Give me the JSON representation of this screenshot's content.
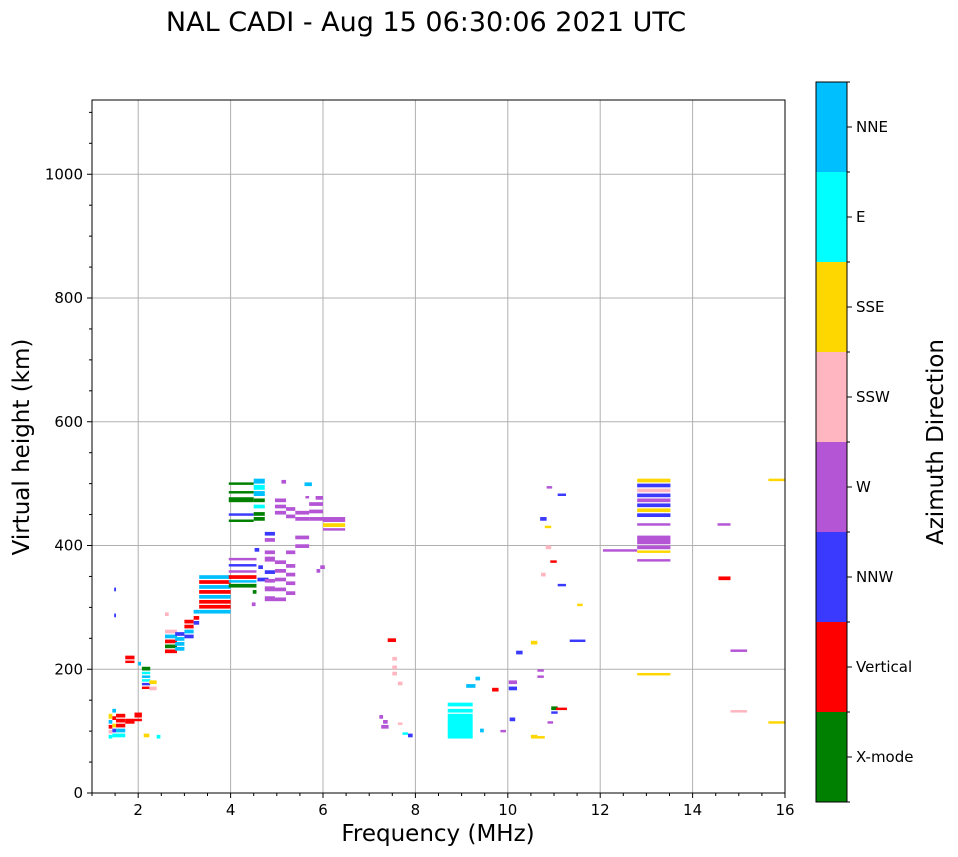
{
  "chart_data": {
    "type": "scatter",
    "title": "NAL CADI - Aug 15 06:30:06 2021 UTC",
    "xlabel": "Frequency (MHz)",
    "ylabel": "Virtual height (km)",
    "xlim": [
      1,
      16
    ],
    "ylim": [
      0,
      1120
    ],
    "xticks": [
      2,
      4,
      6,
      8,
      10,
      12,
      14,
      16
    ],
    "yticks": [
      0,
      200,
      400,
      600,
      800,
      1000
    ],
    "grid": true,
    "colorbar": {
      "label": "Azimuth Direction",
      "categories": [
        {
          "name": "X-mode",
          "color": "#008000"
        },
        {
          "name": "Vertical",
          "color": "#ff0000"
        },
        {
          "name": "NNW",
          "color": "#3a3aff"
        },
        {
          "name": "W",
          "color": "#b455d6"
        },
        {
          "name": "SSW",
          "color": "#ffb6c1"
        },
        {
          "name": "SSE",
          "color": "#ffd700"
        },
        {
          "name": "E",
          "color": "#00ffff"
        },
        {
          "name": "NNE",
          "color": "#00bfff"
        }
      ]
    },
    "echoes": [
      [
        1.36,
        1.44,
        120,
        128,
        "SSE"
      ],
      [
        1.36,
        1.44,
        112,
        118,
        "NNE"
      ],
      [
        1.36,
        1.44,
        104,
        110,
        "Vertical"
      ],
      [
        1.36,
        1.44,
        96,
        102,
        "SSW"
      ],
      [
        1.36,
        1.44,
        88,
        94,
        "E"
      ],
      [
        1.44,
        1.52,
        130,
        136,
        "NNE"
      ],
      [
        1.44,
        1.52,
        118,
        124,
        "Vertical"
      ],
      [
        1.44,
        1.52,
        106,
        112,
        "SSE"
      ],
      [
        1.44,
        1.52,
        98,
        104,
        "NNW"
      ],
      [
        1.44,
        1.52,
        90,
        96,
        "E"
      ],
      [
        1.48,
        1.52,
        326,
        332,
        "NNW"
      ],
      [
        1.48,
        1.52,
        284,
        290,
        "NNW"
      ],
      [
        1.52,
        1.72,
        122,
        128,
        "Vertical"
      ],
      [
        1.52,
        1.72,
        114,
        120,
        "Vertical"
      ],
      [
        1.52,
        1.72,
        106,
        112,
        "Vertical"
      ],
      [
        1.52,
        1.72,
        98,
        104,
        "NNE"
      ],
      [
        1.52,
        1.72,
        90,
        96,
        "E"
      ],
      [
        1.72,
        1.92,
        112,
        120,
        "Vertical"
      ],
      [
        1.72,
        1.92,
        216,
        222,
        "Vertical"
      ],
      [
        1.72,
        1.92,
        210,
        214,
        "Vertical"
      ],
      [
        1.92,
        2.08,
        122,
        130,
        "Vertical"
      ],
      [
        1.92,
        2.08,
        116,
        120,
        "Vertical"
      ],
      [
        2.0,
        2.06,
        206,
        212,
        "NNE"
      ],
      [
        2.08,
        2.26,
        198,
        204,
        "X-mode"
      ],
      [
        2.08,
        2.26,
        192,
        196,
        "E"
      ],
      [
        2.08,
        2.26,
        186,
        190,
        "NNE"
      ],
      [
        2.08,
        2.26,
        180,
        184,
        "E"
      ],
      [
        2.08,
        2.26,
        174,
        178,
        "NNW"
      ],
      [
        2.08,
        2.26,
        168,
        172,
        "Vertical"
      ],
      [
        2.12,
        2.24,
        90,
        96,
        "SSE"
      ],
      [
        2.24,
        2.4,
        176,
        182,
        "SSE"
      ],
      [
        2.24,
        2.4,
        166,
        172,
        "SSW"
      ],
      [
        2.4,
        2.48,
        88,
        94,
        "E"
      ],
      [
        2.58,
        2.66,
        286,
        292,
        "SSW"
      ],
      [
        2.58,
        2.84,
        258,
        264,
        "SSW"
      ],
      [
        2.58,
        2.84,
        250,
        256,
        "NNE"
      ],
      [
        2.58,
        2.84,
        242,
        248,
        "Vertical"
      ],
      [
        2.58,
        2.84,
        234,
        240,
        "X-mode"
      ],
      [
        2.58,
        2.84,
        226,
        232,
        "Vertical"
      ],
      [
        2.8,
        3.0,
        254,
        260,
        "NNW"
      ],
      [
        2.8,
        3.0,
        246,
        252,
        "NNE"
      ],
      [
        2.8,
        3.0,
        238,
        244,
        "NNE"
      ],
      [
        2.8,
        3.0,
        230,
        236,
        "NNE"
      ],
      [
        3.0,
        3.2,
        274,
        280,
        "Vertical"
      ],
      [
        3.0,
        3.2,
        266,
        272,
        "Vertical"
      ],
      [
        3.0,
        3.2,
        258,
        264,
        "NNE"
      ],
      [
        3.0,
        3.2,
        250,
        256,
        "NNW"
      ],
      [
        3.2,
        3.32,
        290,
        296,
        "NNE"
      ],
      [
        3.2,
        3.32,
        280,
        286,
        "Vertical"
      ],
      [
        3.2,
        3.32,
        272,
        278,
        "NNW"
      ],
      [
        3.32,
        4.0,
        346,
        352,
        "NNE"
      ],
      [
        3.32,
        4.0,
        338,
        344,
        "Vertical"
      ],
      [
        3.32,
        4.0,
        330,
        336,
        "NNE"
      ],
      [
        3.32,
        4.0,
        322,
        328,
        "Vertical"
      ],
      [
        3.32,
        4.0,
        314,
        320,
        "NNE"
      ],
      [
        3.32,
        4.0,
        306,
        312,
        "Vertical"
      ],
      [
        3.32,
        4.0,
        298,
        304,
        "Vertical"
      ],
      [
        3.32,
        4.0,
        290,
        296,
        "NNE"
      ],
      [
        3.96,
        4.5,
        498,
        502,
        "X-mode"
      ],
      [
        3.96,
        4.5,
        484,
        488,
        "X-mode"
      ],
      [
        3.96,
        4.5,
        470,
        478,
        "X-mode"
      ],
      [
        3.96,
        4.5,
        448,
        452,
        "NNW"
      ],
      [
        3.96,
        4.5,
        438,
        442,
        "X-mode"
      ],
      [
        3.96,
        4.56,
        376,
        380,
        "W"
      ],
      [
        3.96,
        4.56,
        366,
        370,
        "NNW"
      ],
      [
        3.96,
        4.56,
        356,
        360,
        "W"
      ],
      [
        3.96,
        4.56,
        346,
        352,
        "Vertical"
      ],
      [
        3.96,
        4.56,
        340,
        344,
        "NNE"
      ],
      [
        3.96,
        4.56,
        332,
        338,
        "X-mode"
      ],
      [
        4.5,
        4.74,
        500,
        508,
        "NNE"
      ],
      [
        4.5,
        4.74,
        490,
        498,
        "E"
      ],
      [
        4.5,
        4.74,
        480,
        488,
        "NNE"
      ],
      [
        4.5,
        4.74,
        470,
        476,
        "X-mode"
      ],
      [
        4.5,
        4.74,
        460,
        466,
        "E"
      ],
      [
        4.5,
        4.74,
        448,
        454,
        "X-mode"
      ],
      [
        4.5,
        4.74,
        440,
        446,
        "X-mode"
      ],
      [
        4.58,
        4.82,
        342,
        348,
        "NNW"
      ],
      [
        4.6,
        4.7,
        362,
        368,
        "NNW"
      ],
      [
        4.52,
        4.62,
        390,
        396,
        "NNW"
      ],
      [
        4.48,
        4.56,
        322,
        328,
        "X-mode"
      ],
      [
        4.46,
        4.54,
        302,
        308,
        "W"
      ],
      [
        4.74,
        4.96,
        416,
        422,
        "NNW"
      ],
      [
        4.74,
        4.96,
        406,
        412,
        "W"
      ],
      [
        4.74,
        4.96,
        386,
        392,
        "W"
      ],
      [
        4.74,
        4.96,
        374,
        382,
        "W"
      ],
      [
        4.74,
        4.96,
        354,
        360,
        "NNW"
      ],
      [
        4.74,
        4.96,
        340,
        346,
        "W"
      ],
      [
        4.74,
        4.96,
        326,
        334,
        "W"
      ],
      [
        4.74,
        4.96,
        310,
        318,
        "W"
      ],
      [
        4.96,
        5.2,
        470,
        476,
        "W"
      ],
      [
        4.96,
        5.2,
        460,
        466,
        "W"
      ],
      [
        4.96,
        5.2,
        450,
        456,
        "W"
      ],
      [
        4.96,
        5.2,
        370,
        376,
        "W"
      ],
      [
        4.96,
        5.2,
        356,
        362,
        "W"
      ],
      [
        4.96,
        5.2,
        342,
        348,
        "W"
      ],
      [
        4.96,
        5.2,
        326,
        332,
        "W"
      ],
      [
        4.96,
        5.2,
        310,
        316,
        "W"
      ],
      [
        5.2,
        5.4,
        456,
        462,
        "W"
      ],
      [
        5.2,
        5.4,
        444,
        450,
        "W"
      ],
      [
        5.2,
        5.4,
        386,
        392,
        "W"
      ],
      [
        5.2,
        5.4,
        364,
        370,
        "W"
      ],
      [
        5.2,
        5.4,
        350,
        356,
        "W"
      ],
      [
        5.2,
        5.4,
        336,
        342,
        "W"
      ],
      [
        5.2,
        5.4,
        320,
        326,
        "W"
      ],
      [
        5.4,
        5.7,
        450,
        456,
        "W"
      ],
      [
        5.4,
        5.7,
        440,
        446,
        "W"
      ],
      [
        5.4,
        5.7,
        410,
        416,
        "W"
      ],
      [
        5.4,
        5.7,
        396,
        402,
        "W"
      ],
      [
        5.62,
        5.7,
        476,
        480,
        "W"
      ],
      [
        5.7,
        6.0,
        464,
        470,
        "W"
      ],
      [
        5.7,
        6.0,
        452,
        458,
        "W"
      ],
      [
        5.7,
        6.0,
        440,
        446,
        "W"
      ],
      [
        5.84,
        6.0,
        474,
        480,
        "W"
      ],
      [
        5.94,
        6.04,
        362,
        368,
        "W"
      ],
      [
        5.86,
        5.94,
        356,
        362,
        "W"
      ],
      [
        6.0,
        6.48,
        438,
        446,
        "W"
      ],
      [
        6.0,
        6.48,
        430,
        436,
        "SSE"
      ],
      [
        6.0,
        6.48,
        424,
        428,
        "W"
      ],
      [
        5.6,
        5.76,
        496,
        502,
        "NNE"
      ],
      [
        5.1,
        5.2,
        500,
        506,
        "W"
      ],
      [
        7.22,
        7.3,
        120,
        126,
        "W"
      ],
      [
        7.3,
        7.4,
        112,
        118,
        "W"
      ],
      [
        7.26,
        7.42,
        104,
        110,
        "W"
      ],
      [
        7.4,
        7.58,
        244,
        250,
        "Vertical"
      ],
      [
        7.5,
        7.6,
        214,
        220,
        "SSW"
      ],
      [
        7.5,
        7.6,
        200,
        206,
        "SSW"
      ],
      [
        7.5,
        7.6,
        190,
        196,
        "SSW"
      ],
      [
        7.62,
        7.72,
        174,
        180,
        "SSW"
      ],
      [
        7.62,
        7.72,
        110,
        114,
        "SSW"
      ],
      [
        7.72,
        7.84,
        94,
        98,
        "E"
      ],
      [
        7.84,
        7.94,
        90,
        96,
        "NNW"
      ],
      [
        8.7,
        9.24,
        140,
        146,
        "E"
      ],
      [
        8.7,
        9.24,
        130,
        136,
        "E"
      ],
      [
        8.7,
        9.24,
        88,
        128,
        "E"
      ],
      [
        9.1,
        9.3,
        170,
        176,
        "NNE"
      ],
      [
        9.3,
        9.4,
        182,
        188,
        "NNE"
      ],
      [
        9.4,
        9.48,
        98,
        104,
        "NNE"
      ],
      [
        9.66,
        9.8,
        164,
        170,
        "Vertical"
      ],
      [
        9.84,
        9.96,
        98,
        102,
        "W"
      ],
      [
        10.02,
        10.2,
        176,
        182,
        "W"
      ],
      [
        10.02,
        10.2,
        166,
        172,
        "NNW"
      ],
      [
        10.04,
        10.16,
        116,
        122,
        "NNW"
      ],
      [
        10.18,
        10.32,
        224,
        230,
        "NNW"
      ],
      [
        10.5,
        10.64,
        240,
        246,
        "SSE"
      ],
      [
        10.5,
        10.64,
        88,
        94,
        "SSE"
      ],
      [
        10.62,
        10.8,
        88,
        92,
        "SSE"
      ],
      [
        10.64,
        10.78,
        196,
        200,
        "W"
      ],
      [
        10.64,
        10.78,
        186,
        190,
        "W"
      ],
      [
        10.7,
        10.84,
        440,
        446,
        "NNW"
      ],
      [
        10.72,
        10.82,
        350,
        356,
        "SSW"
      ],
      [
        10.8,
        10.94,
        428,
        432,
        "SSE"
      ],
      [
        10.82,
        10.94,
        394,
        400,
        "SSW"
      ],
      [
        10.84,
        10.96,
        492,
        496,
        "W"
      ],
      [
        10.86,
        10.98,
        112,
        116,
        "W"
      ],
      [
        10.92,
        11.06,
        372,
        376,
        "Vertical"
      ],
      [
        10.94,
        11.08,
        134,
        140,
        "X-mode"
      ],
      [
        10.94,
        11.08,
        128,
        132,
        "NNW"
      ],
      [
        11.04,
        11.28,
        134,
        138,
        "Vertical"
      ],
      [
        11.08,
        11.26,
        480,
        484,
        "NNW"
      ],
      [
        11.08,
        11.26,
        334,
        338,
        "NNW"
      ],
      [
        11.34,
        11.68,
        244,
        248,
        "NNW"
      ],
      [
        11.5,
        11.62,
        302,
        306,
        "SSE"
      ],
      [
        12.06,
        12.8,
        390,
        394,
        "W"
      ],
      [
        12.8,
        13.52,
        190,
        194,
        "SSE"
      ],
      [
        12.8,
        13.52,
        502,
        508,
        "SSE"
      ],
      [
        12.8,
        13.52,
        494,
        500,
        "NNW"
      ],
      [
        12.8,
        13.52,
        486,
        492,
        "SSW"
      ],
      [
        12.8,
        13.52,
        478,
        484,
        "NNW"
      ],
      [
        12.8,
        13.52,
        470,
        476,
        "W"
      ],
      [
        12.8,
        13.52,
        462,
        468,
        "NNW"
      ],
      [
        12.8,
        13.52,
        454,
        460,
        "SSE"
      ],
      [
        12.8,
        13.52,
        446,
        452,
        "NNW"
      ],
      [
        12.8,
        13.52,
        432,
        436,
        "W"
      ],
      [
        12.8,
        13.52,
        402,
        416,
        "W"
      ],
      [
        12.8,
        13.52,
        394,
        400,
        "W"
      ],
      [
        12.8,
        13.52,
        388,
        392,
        "SSE"
      ],
      [
        12.8,
        13.52,
        374,
        378,
        "W"
      ],
      [
        14.54,
        14.82,
        432,
        436,
        "W"
      ],
      [
        14.56,
        14.82,
        344,
        350,
        "Vertical"
      ],
      [
        14.82,
        15.18,
        228,
        232,
        "W"
      ],
      [
        14.82,
        15.18,
        130,
        134,
        "SSW"
      ],
      [
        15.64,
        16.0,
        504,
        508,
        "SSE"
      ],
      [
        15.64,
        16.0,
        112,
        116,
        "SSE"
      ]
    ]
  }
}
